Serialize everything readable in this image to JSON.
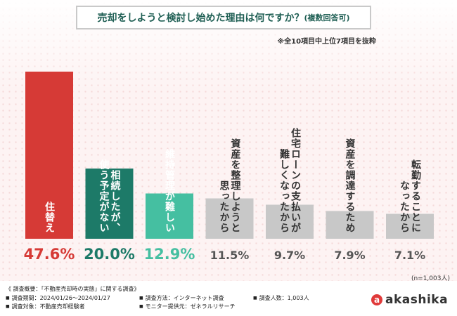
{
  "chart_data": {
    "type": "bar",
    "title": "売却をしようと検討し始めた理由は何ですか？",
    "title_suffix": "(複数回答可)",
    "note": "※全10項目中上位7項目を抜粋",
    "sample_size": "(n=1,003人)",
    "ylim": [
      0,
      50
    ],
    "categories": [
      [
        "住替え"
      ],
      [
        "相続したが、",
        "使う予定がない"
      ],
      [
        "維持管理が難しい"
      ],
      [
        "資産を整理しようと",
        "思ったから"
      ],
      [
        "住宅ローンの支払いが",
        "難しくなったから"
      ],
      [
        "資産を調達するため"
      ],
      [
        "転勤することに",
        "なったから"
      ]
    ],
    "values": [
      47.6,
      20.0,
      12.9,
      11.5,
      9.7,
      7.9,
      7.1
    ],
    "value_labels": [
      "47.6%",
      "20.0%",
      "12.9%",
      "11.5%",
      "9.7%",
      "7.9%",
      "7.1%"
    ],
    "colors": {
      "bars": [
        "#d63a36",
        "#1d7a68",
        "#45bfa1",
        "#c8c8c8",
        "#c8c8c8",
        "#c8c8c8",
        "#c8c8c8"
      ],
      "values": [
        "#d63a36",
        "#1d7a68",
        "#45bfa1",
        "#555555",
        "#555555",
        "#555555",
        "#555555"
      ],
      "labels": [
        "#ffffff",
        "#ffffff",
        "#ffffff",
        "#333333",
        "#333333",
        "#333333",
        "#333333"
      ],
      "title": "#1f5f54"
    }
  },
  "footer": {
    "survey_overview": "《 調査概要：「不動産売却時の実態」に関する調査》",
    "period": "調査期間：2024/01/26～2024/01/27",
    "method": "調査方法：インターネット調査",
    "respondents": "調査人数：1,003人",
    "subject": "調査対象：不動産売却経験者",
    "provider": "モニター提供元：ゼネラルリサーチ"
  },
  "logo": {
    "text": "akashika",
    "mark": "a"
  }
}
